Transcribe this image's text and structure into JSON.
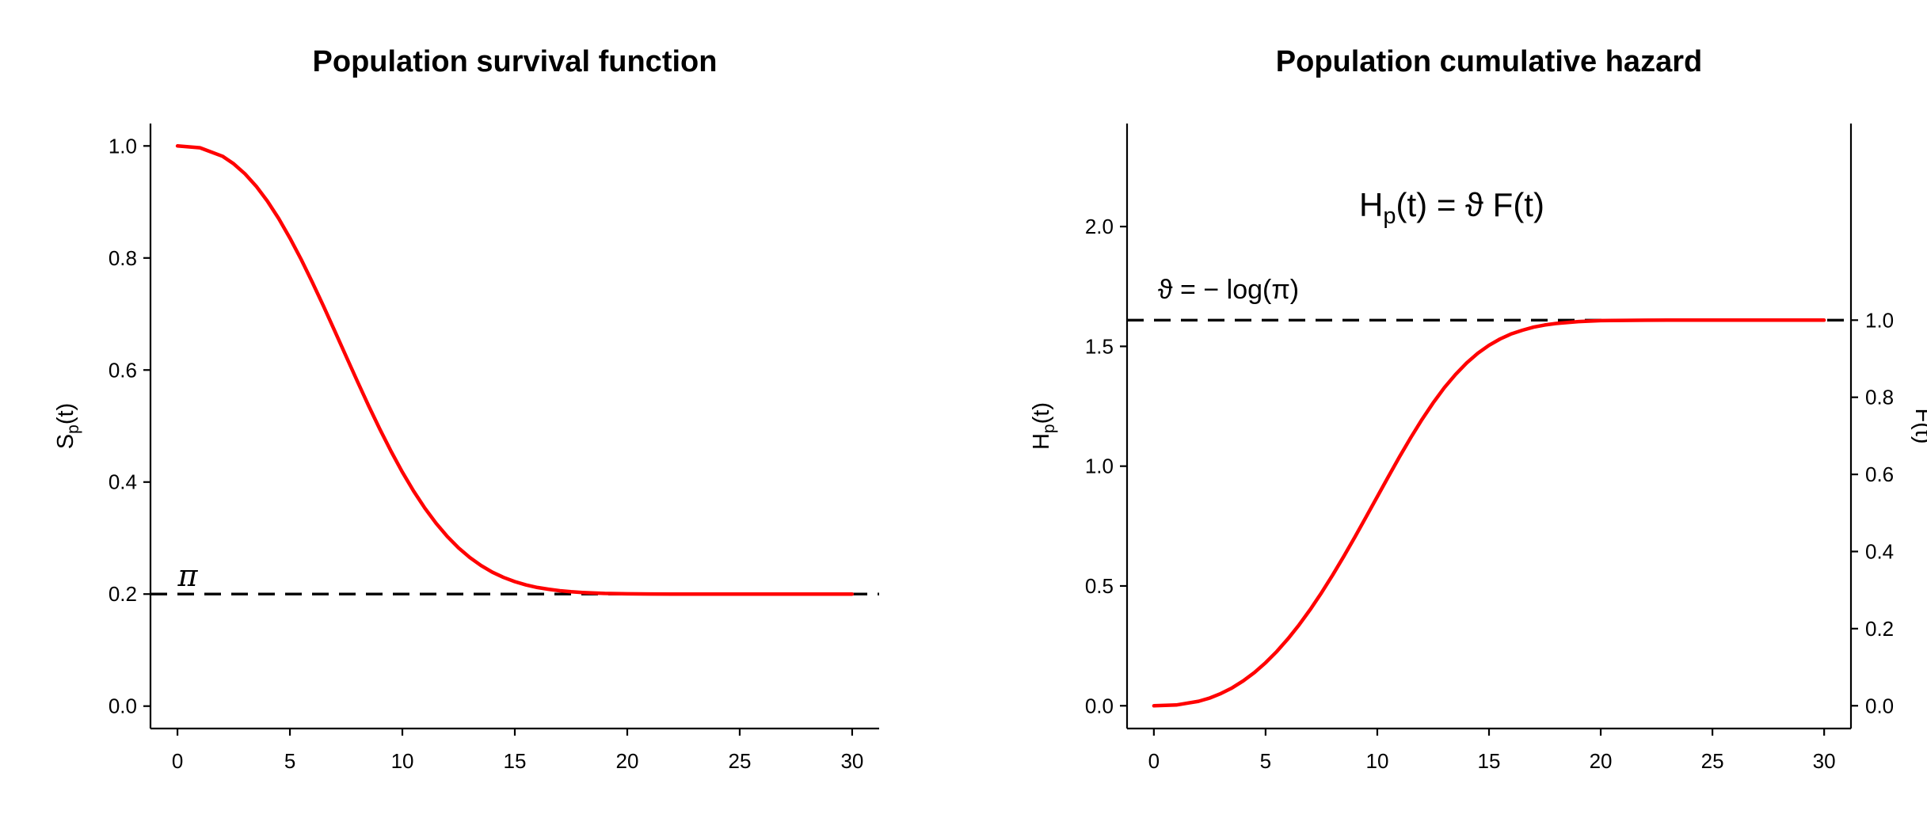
{
  "figure": {
    "background": "#FFFFFF",
    "curve_color": "#FF0000",
    "reference_color": "#000000",
    "annotation_blue": "#0000FF"
  },
  "chart_data": [
    {
      "type": "line",
      "title": "Population survival function",
      "ylabel_parts": [
        "S",
        "p",
        "(t)"
      ],
      "xlabel": "",
      "xlim": [
        -1.2,
        31.2
      ],
      "ylim": [
        -0.04,
        1.04
      ],
      "xticks": [
        0,
        5,
        10,
        15,
        20,
        25,
        30
      ],
      "xtick_labels": [
        "0",
        "5",
        "10",
        "15",
        "20",
        "25",
        "30"
      ],
      "yticks": [
        0,
        0.2,
        0.4,
        0.6,
        0.8,
        1
      ],
      "ytick_labels": [
        "0.0",
        "0.2",
        "0.4",
        "0.6",
        "0.8",
        "1.0"
      ],
      "grid": false,
      "legend": null,
      "series": [
        {
          "name": "S_p(t)",
          "color": "#FF0000",
          "x": [
            0,
            1,
            2,
            2.5,
            3,
            3.5,
            4,
            4.5,
            5,
            5.5,
            6,
            6.5,
            7,
            7.5,
            8,
            8.5,
            9,
            9.5,
            10,
            10.5,
            11,
            11.5,
            12,
            12.5,
            13,
            13.5,
            14,
            14.5,
            15,
            15.5,
            16,
            16.5,
            17,
            17.5,
            18,
            19,
            20,
            21,
            22,
            23,
            24,
            25,
            26,
            27,
            28,
            29,
            30
          ],
          "y": [
            1.0,
            0.9967,
            0.9816,
            0.9681,
            0.9503,
            0.9281,
            0.9013,
            0.8704,
            0.8356,
            0.7975,
            0.7565,
            0.7136,
            0.6692,
            0.6244,
            0.5798,
            0.5362,
            0.4943,
            0.4547,
            0.4177,
            0.3839,
            0.3534,
            0.3264,
            0.3027,
            0.2824,
            0.2652,
            0.2509,
            0.2391,
            0.2297,
            0.2222,
            0.2163,
            0.2118,
            0.2086,
            0.2059,
            0.2041,
            0.2028,
            0.2012,
            0.2004,
            0.2002,
            0.2001,
            0.2,
            0.2,
            0.2,
            0.2,
            0.2,
            0.2,
            0.2,
            0.2
          ]
        }
      ],
      "hline": {
        "y": 0.2,
        "style": "dashed",
        "color": "#000000",
        "label": "π",
        "label_color": "#0000FF"
      }
    },
    {
      "type": "line",
      "title": "Population cumulative hazard",
      "ylabel_parts": [
        "H",
        "p",
        "(t)"
      ],
      "xlabel": "",
      "xlim": [
        -1.2,
        31.2
      ],
      "ylim": [
        -0.095,
        2.43
      ],
      "xticks": [
        0,
        5,
        10,
        15,
        20,
        25,
        30
      ],
      "xtick_labels": [
        "0",
        "5",
        "10",
        "15",
        "20",
        "25",
        "30"
      ],
      "yticks": [
        0,
        0.5,
        1,
        1.5,
        2
      ],
      "ytick_labels": [
        "0.0",
        "0.5",
        "1.0",
        "1.5",
        "2.0"
      ],
      "grid": false,
      "legend": null,
      "right_axis": {
        "label": "F(t)",
        "tick_values": [
          0,
          0.2,
          0.4,
          0.6,
          0.8,
          1
        ],
        "tick_labels": [
          "0.0",
          "0.2",
          "0.4",
          "0.6",
          "0.8",
          "1.0"
        ],
        "theta": 1.6094
      },
      "series": [
        {
          "name": "H_p(t)",
          "color": "#FF0000",
          "x": [
            0,
            1,
            2,
            2.5,
            3,
            3.5,
            4,
            4.5,
            5,
            5.5,
            6,
            6.5,
            7,
            7.5,
            8,
            8.5,
            9,
            9.5,
            10,
            10.5,
            11,
            11.5,
            12,
            12.5,
            13,
            13.5,
            14,
            14.5,
            15,
            15.5,
            16,
            16.5,
            17,
            17.5,
            18,
            19,
            20,
            21,
            22,
            23,
            24,
            25,
            26,
            27,
            28,
            29,
            30
          ],
          "y": [
            0,
            0.0033,
            0.0186,
            0.0324,
            0.051,
            0.0747,
            0.1039,
            0.1388,
            0.1796,
            0.2263,
            0.279,
            0.3375,
            0.4016,
            0.471,
            0.5451,
            0.6232,
            0.7046,
            0.7882,
            0.8729,
            0.9574,
            1.0401,
            1.1197,
            1.195,
            1.2645,
            1.3274,
            1.3827,
            1.4308,
            1.4712,
            1.5043,
            1.531,
            1.5521,
            1.5673,
            1.5802,
            1.5892,
            1.5956,
            1.6033,
            1.6073,
            1.6085,
            1.6091,
            1.6093,
            1.6094,
            1.6094,
            1.6094,
            1.6094,
            1.6094,
            1.6094,
            1.6094
          ]
        }
      ],
      "hline": {
        "y": 1.6094,
        "style": "dashed",
        "color": "#000000",
        "label": "ϑ = − log(π)",
        "label_color": "#0000FF"
      },
      "annotation": {
        "parts": [
          "H",
          "p",
          "(t) = ϑ F(t)"
        ],
        "color": "#FF0000"
      }
    }
  ]
}
